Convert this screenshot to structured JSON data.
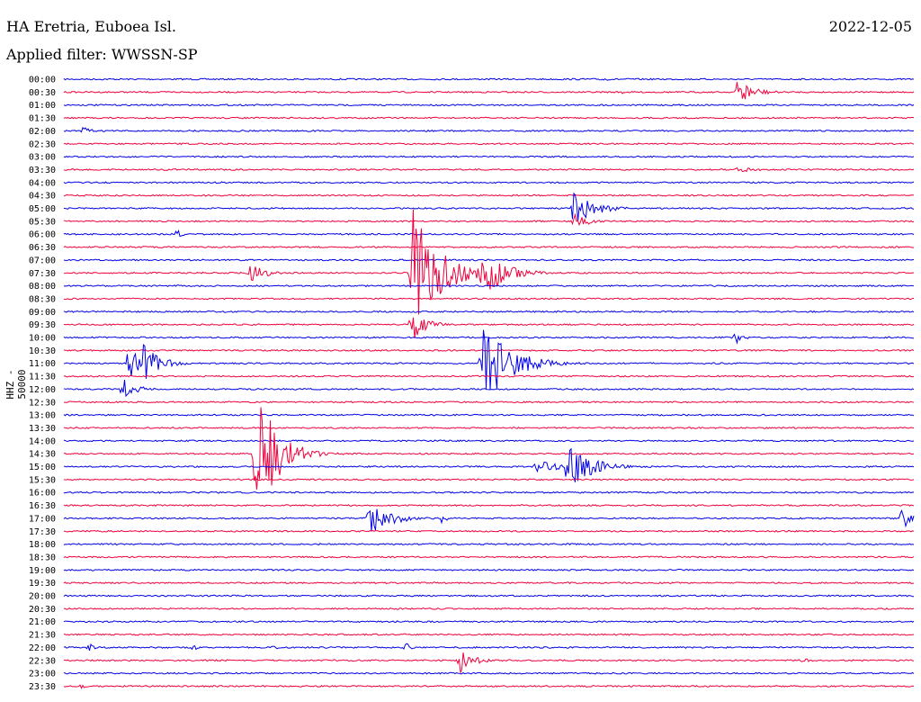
{
  "header": {
    "station": "HA Eretria, Euboea Isl.",
    "date": "2022-12-05",
    "filter": "Applied filter: WWSSN-SP"
  },
  "chart_data": {
    "type": "helicorder",
    "ylabel": "HHZ - 50000",
    "line_colors": [
      "#0000e6",
      "#f0003c"
    ],
    "rows": [
      "00:00",
      "00:30",
      "01:00",
      "01:30",
      "02:00",
      "02:30",
      "03:00",
      "03:30",
      "04:00",
      "04:30",
      "05:00",
      "05:30",
      "06:00",
      "06:30",
      "07:00",
      "07:30",
      "08:00",
      "08:30",
      "09:00",
      "09:30",
      "10:00",
      "10:30",
      "11:00",
      "11:30",
      "12:00",
      "12:30",
      "13:00",
      "13:30",
      "14:00",
      "14:30",
      "15:00",
      "15:30",
      "16:00",
      "16:30",
      "17:00",
      "17:30",
      "18:00",
      "18:30",
      "19:00",
      "19:30",
      "20:00",
      "20:30",
      "21:00",
      "21:30",
      "22:00",
      "22:30",
      "23:00",
      "23:30"
    ],
    "row_minutes": 30,
    "events": [
      {
        "row": "00:00",
        "minute": 19.0,
        "amp": 3,
        "dur": 0.5
      },
      {
        "row": "00:30",
        "minute": 19.7,
        "amp": 2,
        "dur": 0.5
      },
      {
        "row": "00:30",
        "minute": 23.8,
        "amp": 16,
        "dur": 1.2
      },
      {
        "row": "02:00",
        "minute": 0.7,
        "amp": 5,
        "dur": 0.6
      },
      {
        "row": "03:30",
        "minute": 23.8,
        "amp": 3,
        "dur": 1.8
      },
      {
        "row": "05:00",
        "minute": 18.0,
        "amp": 20,
        "dur": 1.5
      },
      {
        "row": "05:30",
        "minute": 18.0,
        "amp": 10,
        "dur": 1.0
      },
      {
        "row": "06:00",
        "minute": 4.0,
        "amp": 5,
        "dur": 0.4
      },
      {
        "row": "07:30",
        "minute": 6.6,
        "amp": 12,
        "dur": 1.2
      },
      {
        "row": "07:30",
        "minute": 12.3,
        "amp": 75,
        "dur": 2.0
      },
      {
        "row": "07:30",
        "minute": 14.8,
        "amp": 30,
        "dur": 1.6
      },
      {
        "row": "09:30",
        "minute": 12.3,
        "amp": 20,
        "dur": 1.0
      },
      {
        "row": "10:00",
        "minute": 23.7,
        "amp": 10,
        "dur": 0.5
      },
      {
        "row": "11:00",
        "minute": 2.3,
        "amp": 20,
        "dur": 1.0
      },
      {
        "row": "11:00",
        "minute": 2.8,
        "amp": 24,
        "dur": 1.2
      },
      {
        "row": "11:00",
        "minute": 14.8,
        "amp": 50,
        "dur": 2.0
      },
      {
        "row": "12:00",
        "minute": 2.1,
        "amp": 12,
        "dur": 1.0
      },
      {
        "row": "14:30",
        "minute": 6.8,
        "amp": 75,
        "dur": 1.6
      },
      {
        "row": "15:00",
        "minute": 16.7,
        "amp": 12,
        "dur": 1.2
      },
      {
        "row": "15:00",
        "minute": 17.8,
        "amp": 30,
        "dur": 1.6
      },
      {
        "row": "17:00",
        "minute": 10.8,
        "amp": 20,
        "dur": 1.6
      },
      {
        "row": "17:00",
        "minute": 13.3,
        "amp": 6,
        "dur": 0.6
      },
      {
        "row": "17:00",
        "minute": 29.6,
        "amp": 12,
        "dur": 0.8
      },
      {
        "row": "22:00",
        "minute": 0.9,
        "amp": 5,
        "dur": 0.4
      },
      {
        "row": "22:00",
        "minute": 4.6,
        "amp": 4,
        "dur": 0.4
      },
      {
        "row": "22:00",
        "minute": 7.4,
        "amp": 5,
        "dur": 0.4
      },
      {
        "row": "22:00",
        "minute": 12.1,
        "amp": 5,
        "dur": 0.4
      },
      {
        "row": "22:30",
        "minute": 14.0,
        "amp": 14,
        "dur": 1.0
      },
      {
        "row": "22:30",
        "minute": 26.0,
        "amp": 3,
        "dur": 1.0
      },
      {
        "row": "23:30",
        "minute": 0.6,
        "amp": 3,
        "dur": 0.6
      }
    ]
  }
}
